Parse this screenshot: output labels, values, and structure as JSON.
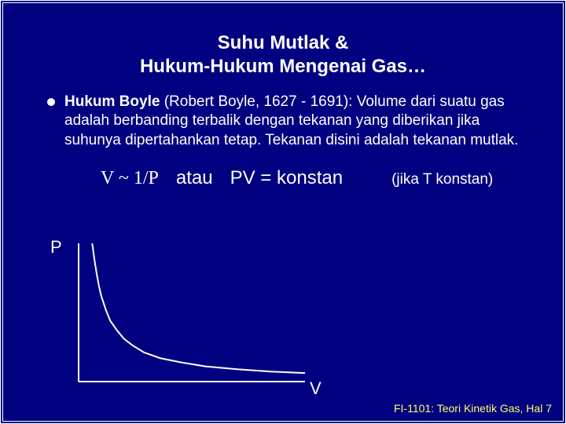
{
  "title": {
    "line1": "Suhu Mutlak &",
    "line2": "Hukum-Hukum Mengenai Gas…"
  },
  "bullet": {
    "lead_bold": "Hukum Boyle",
    "name_open": " (Robert Boyle, ",
    "years": "1627 - 1691",
    "name_close": "):",
    "rest": " Volume dari suatu gas adalah berbanding terbalik dengan tekanan yang diberikan jika suhunya dipertahankan tetap. Tekanan disini adalah tekanan mutlak."
  },
  "formula": {
    "lhs": "V ~ 1/P",
    "atau": "atau",
    "eq": "PV = konstan",
    "note": "(jika T konstan)"
  },
  "chart": {
    "type": "line",
    "y_label": "P",
    "x_label": "V",
    "axis_color": "#ffffff",
    "axis_width": 2,
    "curve_color": "#ffffff",
    "curve_width": 2,
    "background_color": "#000080",
    "xlim": [
      0,
      1
    ],
    "ylim": [
      0,
      1
    ],
    "points": [
      {
        "x": 0.06,
        "y": 1.0
      },
      {
        "x": 0.07,
        "y": 0.88
      },
      {
        "x": 0.08,
        "y": 0.78
      },
      {
        "x": 0.09,
        "y": 0.69
      },
      {
        "x": 0.1,
        "y": 0.62
      },
      {
        "x": 0.12,
        "y": 0.52
      },
      {
        "x": 0.14,
        "y": 0.44
      },
      {
        "x": 0.17,
        "y": 0.37
      },
      {
        "x": 0.2,
        "y": 0.31
      },
      {
        "x": 0.24,
        "y": 0.26
      },
      {
        "x": 0.29,
        "y": 0.21
      },
      {
        "x": 0.36,
        "y": 0.17
      },
      {
        "x": 0.45,
        "y": 0.14
      },
      {
        "x": 0.56,
        "y": 0.11
      },
      {
        "x": 0.7,
        "y": 0.089
      },
      {
        "x": 0.85,
        "y": 0.073
      },
      {
        "x": 1.0,
        "y": 0.062
      }
    ]
  },
  "footer": "FI-1101: Teori Kinetik Gas, Hal 7",
  "colors": {
    "background": "#000080",
    "text": "#ffffff",
    "footer": "#ffff66",
    "border": "#ffffff"
  },
  "fonts": {
    "title_size_pt": 18,
    "body_size_pt": 14,
    "formula_size_pt": 18,
    "footer_size_pt": 10
  }
}
